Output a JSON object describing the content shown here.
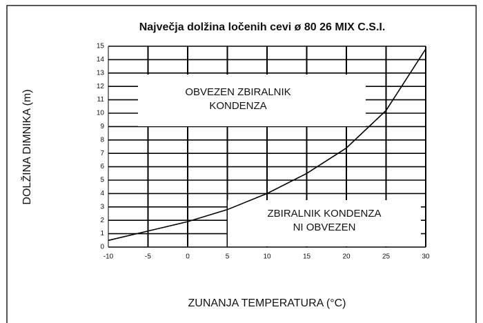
{
  "chart_data": {
    "type": "line",
    "title": "Največja dolžina ločenih cevi ø 80 26 MIX C.S.I.",
    "xlabel": "ZUNANJA TEMPERATURA (°C)",
    "ylabel": "DOLŽINA DIMNIKA (m)",
    "x": [
      -10,
      -5,
      0,
      5,
      10,
      15,
      20,
      25,
      30
    ],
    "series": [
      {
        "color": "#000000",
        "values": [
          0.5,
          1.2,
          1.9,
          2.8,
          4.0,
          5.5,
          7.4,
          10.2,
          14.8
        ]
      }
    ],
    "xlim": [
      -10,
      30
    ],
    "xticks": [
      -10,
      -5,
      0,
      5,
      10,
      15,
      20,
      25,
      30
    ],
    "ylim": [
      0,
      15
    ],
    "yticks": [
      0,
      1,
      2,
      3,
      4,
      5,
      6,
      7,
      8,
      9,
      10,
      11,
      12,
      13,
      14,
      15
    ],
    "grid": true,
    "annotations": [
      {
        "lines": [
          "OBVEZEN ZBIRALNIK",
          "KONDENZA"
        ]
      },
      {
        "lines": [
          "ZBIRALNIK KONDENZA",
          "NI OBVEZEN"
        ]
      }
    ]
  }
}
